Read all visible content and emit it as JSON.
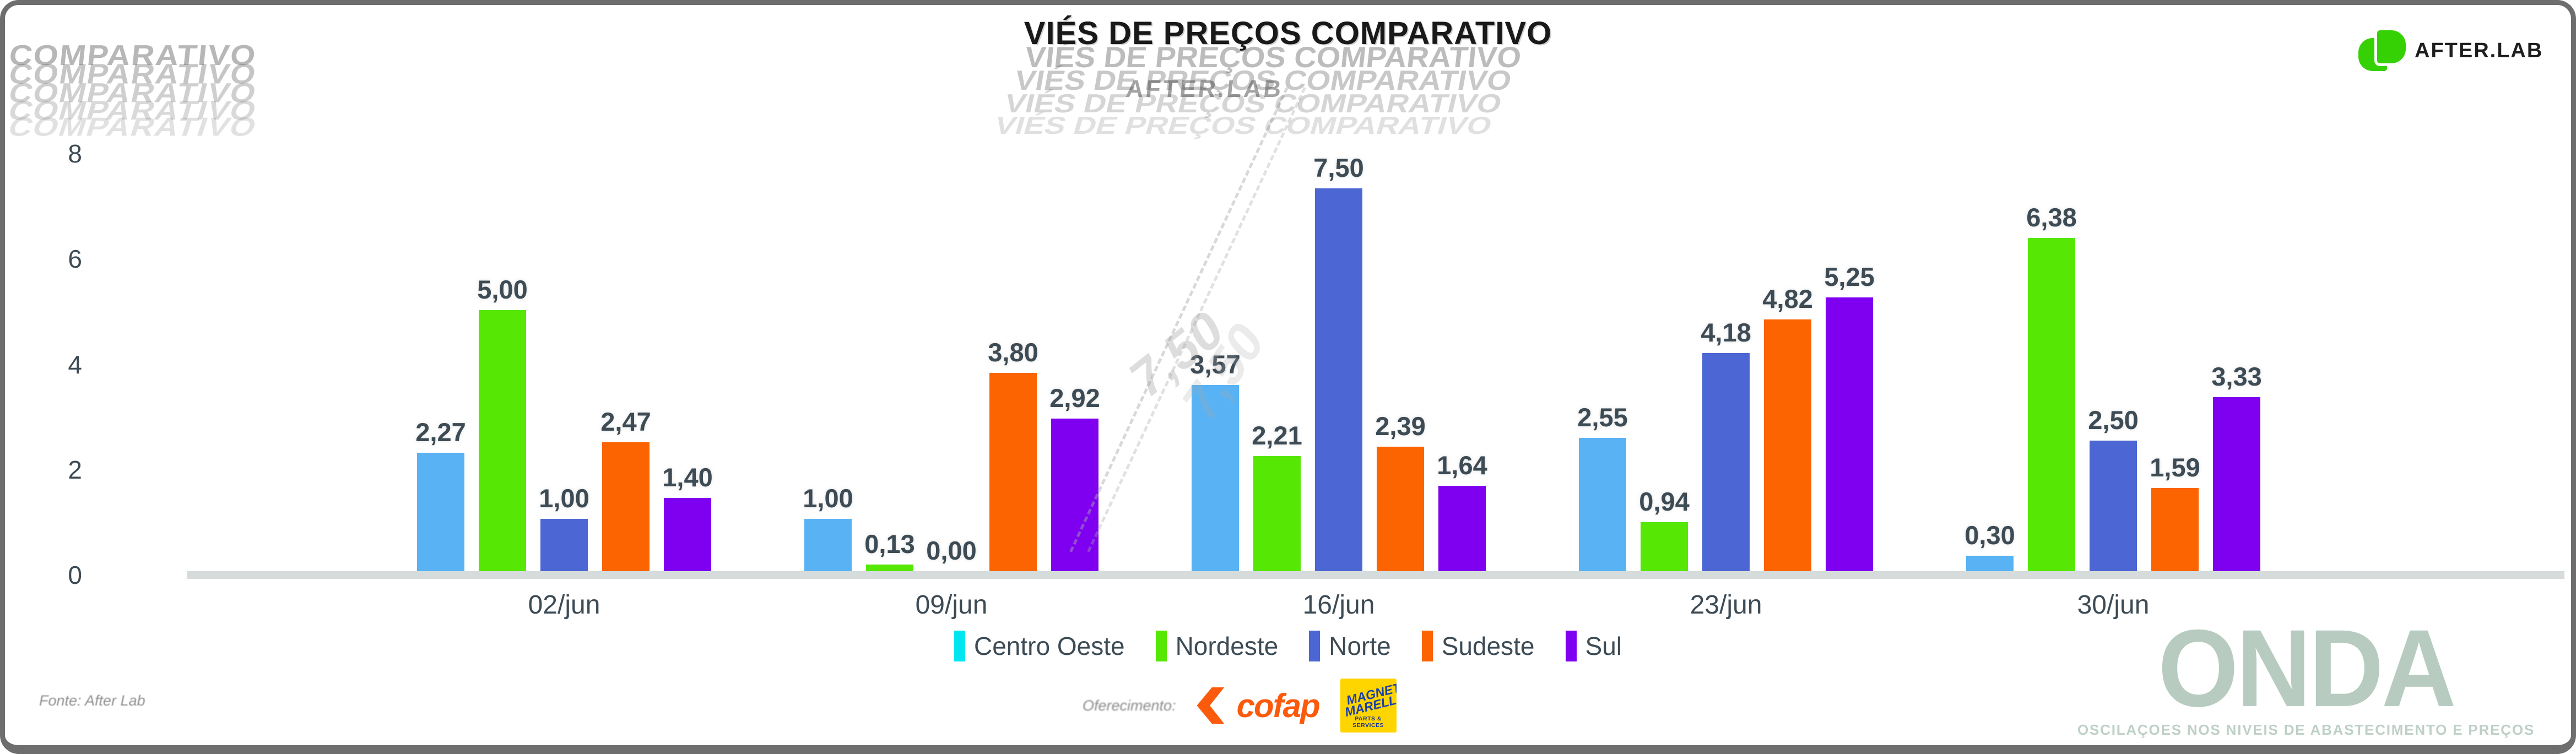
{
  "title": "VIÉS DE PREÇOS COMPARATIVO",
  "brand": {
    "name": "AFTER.LAB",
    "icon_color": "#35d105"
  },
  "watermarks": {
    "top_left_ghost": "COMPARATIVO",
    "title_ghost": "VIÉS DE PREÇOS COMPARATIVO",
    "afterlab_ghost": "AFTER.LAB",
    "value_ghost": "7,50",
    "onda_title": "ONDA",
    "onda_subtitle": "OSCILAÇOES NOS NIVEIS DE ABASTECIMENTO E PREÇOS",
    "onda_color": "#b7cbc1"
  },
  "footer": {
    "fonte": "Fonte: After Lab",
    "oferecimento": "Oferecimento:",
    "cofap_text": "cofap",
    "magneti_line1": "MAGNETI",
    "magneti_line2": "MARELLI",
    "magneti_sub": "PARTS & SERVICES"
  },
  "colors": {
    "label_text": "#3d4b55",
    "baseline": "#d5dcdb",
    "border": "#6e6e6e",
    "cofap_orange": "#fb5a0c",
    "magneti_yellow": "#ffd500",
    "magneti_blue": "#1b3faa"
  },
  "chart_data": {
    "type": "bar",
    "title": "VIÉS DE PREÇOS COMPARATIVO",
    "categories": [
      "02/jun",
      "09/jun",
      "16/jun",
      "23/jun",
      "30/jun"
    ],
    "series": [
      {
        "name": "Centro Oeste",
        "color": "#58b2f4",
        "legend_color": "#00e6f0",
        "values": [
          2.27,
          1.0,
          3.57,
          2.55,
          0.3
        ],
        "labels": [
          "2,27",
          "1,00",
          "3,57",
          "2,55",
          "0,30"
        ]
      },
      {
        "name": "Nordeste",
        "color": "#56e804",
        "legend_color": "#56e804",
        "values": [
          5.0,
          0.13,
          2.21,
          0.94,
          6.38
        ],
        "labels": [
          "5,00",
          "0,13",
          "2,21",
          "0,94",
          "6,38"
        ]
      },
      {
        "name": "Norte",
        "color": "#4c66d4",
        "legend_color": "#4c66d4",
        "values": [
          1.0,
          0.0,
          7.5,
          4.18,
          2.5
        ],
        "labels": [
          "1,00",
          "0,00",
          "7,50",
          "4,18",
          "2,50"
        ]
      },
      {
        "name": "Sudeste",
        "color": "#fb6400",
        "legend_color": "#fb6400",
        "values": [
          2.47,
          3.8,
          2.39,
          4.82,
          1.59
        ],
        "labels": [
          "2,47",
          "3,80",
          "2,39",
          "4,82",
          "1,59"
        ]
      },
      {
        "name": "Sul",
        "color": "#7f00f0",
        "legend_color": "#7f00f0",
        "values": [
          1.4,
          2.92,
          1.64,
          5.25,
          3.33
        ],
        "labels": [
          "1,40",
          "2,92",
          "1,64",
          "5,25",
          "3,33"
        ]
      }
    ],
    "ylim": [
      0,
      8
    ],
    "yticks": [
      0,
      2,
      4,
      6,
      8
    ],
    "grid": false,
    "legend_position": "bottom",
    "xlabel": "",
    "ylabel": ""
  }
}
